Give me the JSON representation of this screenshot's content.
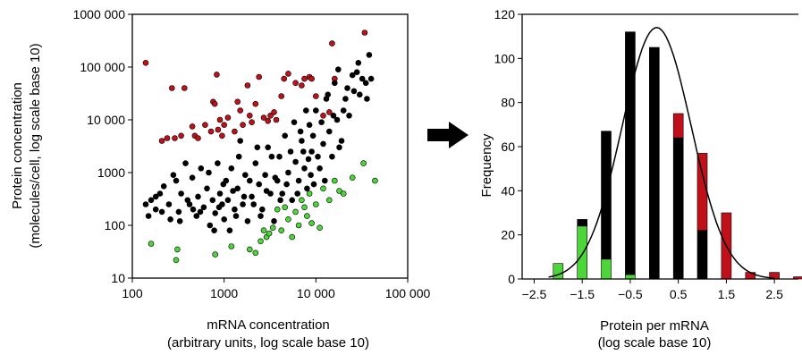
{
  "colors": {
    "high": "#c0111a",
    "mid": "#000000",
    "low": "#4cd639",
    "curve": "#000000"
  },
  "arrow": {
    "icon": "right-arrow-icon"
  },
  "chart_data": [
    {
      "type": "scatter",
      "xlabel_line1": "mRNA concentration",
      "xlabel_line2": "(arbitrary units, log scale base 10)",
      "ylabel_line1": "Protein concentration",
      "ylabel_line2": "(molecules/cell, log scale base 10)",
      "x_scale": "log",
      "y_scale": "log",
      "xlim": [
        100,
        100000
      ],
      "ylim": [
        10,
        1000000
      ],
      "x_ticks": [
        "100",
        "1000",
        "10 000",
        "100 000"
      ],
      "y_ticks": [
        "10",
        "100",
        "1000",
        "10 000",
        "100 000",
        "1000 000"
      ],
      "series": [
        {
          "color_key": "high",
          "points": [
            [
              140,
              120000
            ],
            [
              270,
              40000
            ],
            [
              370,
              40000
            ],
            [
              210,
              4000
            ],
            [
              240,
              4500
            ],
            [
              290,
              4500
            ],
            [
              340,
              5000
            ],
            [
              450,
              7500
            ],
            [
              480,
              5000
            ],
            [
              520,
              4500
            ],
            [
              620,
              8000
            ],
            [
              720,
              6000
            ],
            [
              760,
              22000
            ],
            [
              790,
              20000
            ],
            [
              830,
              72000
            ],
            [
              860,
              6500
            ],
            [
              900,
              10000
            ],
            [
              950,
              5000
            ],
            [
              1000,
              8000
            ],
            [
              1100,
              11000
            ],
            [
              1300,
              6000
            ],
            [
              1400,
              22000
            ],
            [
              1500,
              15000
            ],
            [
              1600,
              8000
            ],
            [
              1800,
              45000
            ],
            [
              1900,
              12000
            ],
            [
              2000,
              9000
            ],
            [
              2200,
              20000
            ],
            [
              2400,
              65000
            ],
            [
              2700,
              11000
            ],
            [
              3000,
              9500
            ],
            [
              3200,
              12000
            ],
            [
              3500,
              14000
            ],
            [
              3700,
              10000
            ],
            [
              4200,
              28000
            ],
            [
              4500,
              60000
            ],
            [
              5000,
              75000
            ],
            [
              6000,
              50000
            ],
            [
              7000,
              45000
            ],
            [
              7500,
              60000
            ],
            [
              8500,
              65000
            ],
            [
              9000,
              60000
            ],
            [
              10000,
              28000
            ],
            [
              12000,
              12000
            ],
            [
              14000,
              14000
            ],
            [
              15000,
              280000
            ],
            [
              16000,
              60000
            ],
            [
              34000,
              450000
            ]
          ]
        },
        {
          "color_key": "mid",
          "points": [
            [
              140,
              250
            ],
            [
              160,
              300
            ],
            [
              180,
              200
            ],
            [
              150,
              150
            ],
            [
              200,
              400
            ],
            [
              220,
              550
            ],
            [
              250,
              250
            ],
            [
              260,
              130
            ],
            [
              300,
              700
            ],
            [
              320,
              180
            ],
            [
              340,
              400
            ],
            [
              380,
              1500
            ],
            [
              420,
              250
            ],
            [
              450,
              800
            ],
            [
              500,
              150
            ],
            [
              520,
              350
            ],
            [
              560,
              1200
            ],
            [
              600,
              220
            ],
            [
              650,
              500
            ],
            [
              700,
              100
            ],
            [
              750,
              300
            ],
            [
              800,
              170
            ],
            [
              850,
              1500
            ],
            [
              900,
              400
            ],
            [
              950,
              250
            ],
            [
              1000,
              130
            ],
            [
              1050,
              700
            ],
            [
              1100,
              300
            ],
            [
              1200,
              1200
            ],
            [
              1300,
              200
            ],
            [
              1400,
              500
            ],
            [
              1500,
              4000
            ],
            [
              1600,
              250
            ],
            [
              1700,
              900
            ],
            [
              1800,
              120
            ],
            [
              2000,
              350
            ],
            [
              2200,
              1500
            ],
            [
              2400,
              600
            ],
            [
              2600,
              200
            ],
            [
              2800,
              900
            ],
            [
              3000,
              3000
            ],
            [
              3200,
              400
            ],
            [
              3500,
              120
            ],
            [
              3800,
              700
            ],
            [
              4000,
              2000
            ],
            [
              4300,
              400
            ],
            [
              4600,
              5000
            ],
            [
              5000,
              1000
            ],
            [
              5500,
              300
            ],
            [
              6000,
              1600
            ],
            [
              6500,
              700
            ],
            [
              7000,
              4000
            ],
            [
              7500,
              1200
            ],
            [
              8000,
              500
            ],
            [
              8500,
              8000
            ],
            [
              9000,
              2500
            ],
            [
              9500,
              600
            ],
            [
              10000,
              15000
            ],
            [
              11000,
              1200
            ],
            [
              12000,
              3500
            ],
            [
              13000,
              25000
            ],
            [
              14000,
              6000
            ],
            [
              15000,
              2000
            ],
            [
              16000,
              50000
            ],
            [
              17000,
              10000
            ],
            [
              18000,
              3000
            ],
            [
              20000,
              15000
            ],
            [
              22000,
              40000
            ],
            [
              25000,
              70000
            ],
            [
              28000,
              80000
            ],
            [
              30000,
              30000
            ],
            [
              35000,
              50000
            ],
            [
              38000,
              170000
            ],
            [
              40000,
              60000
            ],
            [
              180,
              350
            ],
            [
              210,
              180
            ],
            [
              280,
              900
            ],
            [
              330,
              120
            ],
            [
              400,
              300
            ],
            [
              460,
              200
            ],
            [
              550,
              180
            ],
            [
              680,
              1000
            ],
            [
              780,
              80
            ],
            [
              880,
              220
            ],
            [
              980,
              600
            ],
            [
              1150,
              80
            ],
            [
              1250,
              450
            ],
            [
              1350,
              150
            ],
            [
              1450,
              2000
            ],
            [
              1650,
              350
            ],
            [
              1900,
              700
            ],
            [
              2100,
              250
            ],
            [
              2300,
              3000
            ],
            [
              2500,
              150
            ],
            [
              2900,
              450
            ],
            [
              3300,
              2000
            ],
            [
              3600,
              800
            ],
            [
              4100,
              300
            ],
            [
              4800,
              600
            ],
            [
              5300,
              2500
            ],
            [
              5800,
              9000
            ],
            [
              6300,
              400
            ],
            [
              6800,
              6000
            ],
            [
              7300,
              2500
            ],
            [
              7800,
              15000
            ],
            [
              8300,
              1800
            ],
            [
              8800,
              900
            ],
            [
              9300,
              5000
            ],
            [
              10500,
              2000
            ],
            [
              11500,
              9000
            ],
            [
              12500,
              700
            ],
            [
              13500,
              30000
            ],
            [
              15500,
              12000
            ],
            [
              17500,
              90000
            ],
            [
              19000,
              4000
            ],
            [
              21000,
              25000
            ],
            [
              23000,
              12000
            ],
            [
              26000,
              35000
            ],
            [
              29000,
              120000
            ],
            [
              32000,
              60000
            ],
            [
              36000,
              25000
            ]
          ]
        },
        {
          "color_key": "low",
          "points": [
            [
              160,
              45
            ],
            [
              300,
              22
            ],
            [
              310,
              35
            ],
            [
              800,
              28
            ],
            [
              1200,
              40
            ],
            [
              1900,
              35
            ],
            [
              2200,
              30
            ],
            [
              2500,
              50
            ],
            [
              2700,
              80
            ],
            [
              2900,
              60
            ],
            [
              3100,
              70
            ],
            [
              3400,
              90
            ],
            [
              3800,
              200
            ],
            [
              4200,
              80
            ],
            [
              4600,
              220
            ],
            [
              5000,
              130
            ],
            [
              6000,
              180
            ],
            [
              6500,
              100
            ],
            [
              7000,
              300
            ],
            [
              8000,
              150
            ],
            [
              8500,
              400
            ],
            [
              9000,
              110
            ],
            [
              10000,
              250
            ],
            [
              12000,
              500
            ],
            [
              14000,
              300
            ],
            [
              16000,
              700
            ],
            [
              18000,
              450
            ],
            [
              20000,
              400
            ],
            [
              25000,
              800
            ],
            [
              33000,
              1500
            ],
            [
              44000,
              700
            ],
            [
              5500,
              60
            ],
            [
              7500,
              220
            ],
            [
              11000,
              90
            ]
          ]
        }
      ]
    },
    {
      "type": "bar",
      "stacked": true,
      "xlabel_line1": "Protein per mRNA",
      "xlabel_line2": "(log scale base 10)",
      "ylabel": "Frequency",
      "xlim": [
        -2.75,
        3.0
      ],
      "ylim": [
        0,
        120
      ],
      "x_ticks": [
        "−2.5",
        "−1.5",
        "−0.5",
        "0.5",
        "1.5",
        "2.5"
      ],
      "y_ticks": [
        "0",
        "20",
        "40",
        "60",
        "80",
        "100",
        "120"
      ],
      "x": [
        -2.0,
        -1.5,
        -1.0,
        -0.5,
        0.0,
        0.5,
        1.0,
        1.5,
        2.0,
        2.5,
        3.0
      ],
      "series": [
        {
          "color_key": "low",
          "values": [
            7,
            24,
            9,
            2,
            0,
            0,
            0,
            0,
            0,
            0,
            0
          ]
        },
        {
          "color_key": "mid",
          "values": [
            0,
            3,
            58,
            110,
            105,
            64,
            22,
            0,
            0,
            0,
            0
          ]
        },
        {
          "color_key": "high",
          "values": [
            0,
            0,
            0,
            0,
            0,
            11,
            35,
            30,
            3,
            3,
            1
          ]
        }
      ],
      "fit_curve": {
        "type": "gaussian",
        "peak": 114,
        "mean": 0.05,
        "sd": 0.72
      }
    }
  ]
}
